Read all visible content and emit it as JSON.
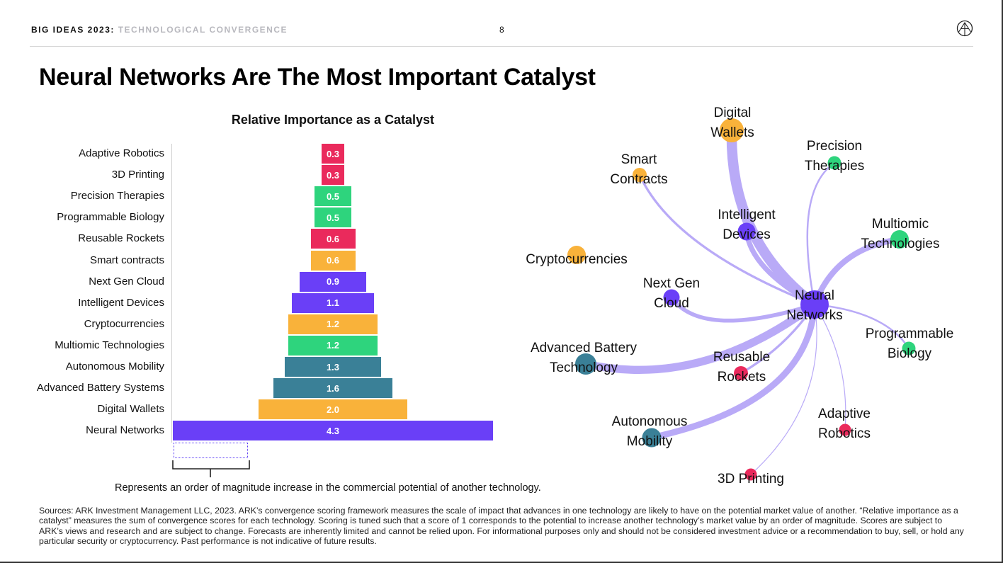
{
  "header": {
    "series_name": "BIG IDEAS 2023",
    "separator": ":",
    "section": "TECHNOLOGICAL CONVERGENCE",
    "page": "8"
  },
  "title": "Neural Networks Are The Most Important Catalyst",
  "chart_data": [
    {
      "type": "bar",
      "orientation": "horizontal",
      "title": "Relative Importance as a Catalyst",
      "categories": [
        "Adaptive Robotics",
        "3D Printing",
        "Precision Therapies",
        "Programmable Biology",
        "Reusable Rockets",
        "Smart contracts",
        "Next Gen Cloud",
        "Intelligent Devices",
        "Cryptocurrencies",
        "Multiomic Technologies",
        "Autonomous Mobility",
        "Advanced Battery Systems",
        "Digital Wallets",
        "Neural Networks"
      ],
      "values": [
        0.3,
        0.3,
        0.5,
        0.5,
        0.6,
        0.6,
        0.9,
        1.1,
        1.2,
        1.2,
        1.3,
        1.6,
        2.0,
        4.3
      ],
      "value_labels": [
        "0.3",
        "0.3",
        "0.5",
        "0.5",
        "0.6",
        "0.6",
        "0.9",
        "1.1",
        "1.2",
        "1.2",
        "1.3",
        "1.6",
        "2.0",
        "4.3"
      ],
      "colors": [
        "#ea2a5c",
        "#ea2a5c",
        "#2ed47d",
        "#2ed47d",
        "#ea2a5c",
        "#f9b23a",
        "#6a3ff7",
        "#6a3ff7",
        "#f9b23a",
        "#2ed47d",
        "#3a8097",
        "#3a8097",
        "#f9b23a",
        "#6a3ff7"
      ],
      "alignment": "centered",
      "scale_annotation": "Represents an order of magnitude increase in the commercial potential of another technology."
    },
    {
      "type": "network",
      "hub": "Neural Networks",
      "nodes": [
        {
          "label": "Digital Wallets",
          "lines": [
            "Digital",
            "Wallets"
          ],
          "color": "#f9b23a",
          "strength": 2.0
        },
        {
          "label": "Precision Therapies",
          "lines": [
            "Precision",
            "Therapies"
          ],
          "color": "#2ed47d",
          "strength": 0.5
        },
        {
          "label": "Smart Contracts",
          "lines": [
            "Smart",
            "Contracts"
          ],
          "color": "#f9b23a",
          "strength": 0.6
        },
        {
          "label": "Intelligent Devices",
          "lines": [
            "Intelligent",
            "Devices"
          ],
          "color": "#6a3ff7",
          "strength": 1.1
        },
        {
          "label": "Multiomic Technologies",
          "lines": [
            "Multiomic",
            "Technologies"
          ],
          "color": "#2ed47d",
          "strength": 1.2
        },
        {
          "label": "Cryptocurrencies",
          "lines": [
            "Cryptocurrencies"
          ],
          "color": "#f9b23a",
          "strength": 1.2
        },
        {
          "label": "Next Gen Cloud",
          "lines": [
            "Next Gen",
            "Cloud"
          ],
          "color": "#6a3ff7",
          "strength": 0.9
        },
        {
          "label": "Programmable Biology",
          "lines": [
            "Programmable",
            "Biology"
          ],
          "color": "#2ed47d",
          "strength": 0.5
        },
        {
          "label": "Advanced Battery Technology",
          "lines": [
            "Advanced Battery",
            "Technology"
          ],
          "color": "#3a8097",
          "strength": 1.6
        },
        {
          "label": "Reusable Rockets",
          "lines": [
            "Reusable",
            "Rockets"
          ],
          "color": "#ea2a5c",
          "strength": 0.6
        },
        {
          "label": "Autonomous Mobility",
          "lines": [
            "Autonomous",
            "Mobility"
          ],
          "color": "#3a8097",
          "strength": 1.3
        },
        {
          "label": "Adaptive Robotics",
          "lines": [
            "Adaptive",
            "Robotics"
          ],
          "color": "#ea2a5c",
          "strength": 0.3
        },
        {
          "label": "3D Printing",
          "lines": [
            "3D Printing"
          ],
          "color": "#ea2a5c",
          "strength": 0.3
        }
      ],
      "hub_lines": [
        "Neural",
        "Networks"
      ],
      "hub_color": "#6a3ff7",
      "edge_color": "#b9aaf7"
    }
  ],
  "sources": "Sources: ARK Investment Management LLC, 2023. ARK’s convergence scoring framework measures the scale of impact that advances in one technology are likely to have on the potential market value of another. “Relative importance as a catalyst” measures the sum of convergence scores for each technology. Scoring is tuned such that a score of 1 corresponds to the potential to increase another technology’s market value by an order of magnitude. Scores are subject to ARK’s views and research and are subject to change. Forecasts are inherently limited and cannot be relied upon. For informational purposes only and should not be considered investment advice or a recommendation to buy, sell, or hold any particular security or cryptocurrency. Past performance is not indicative of future results."
}
